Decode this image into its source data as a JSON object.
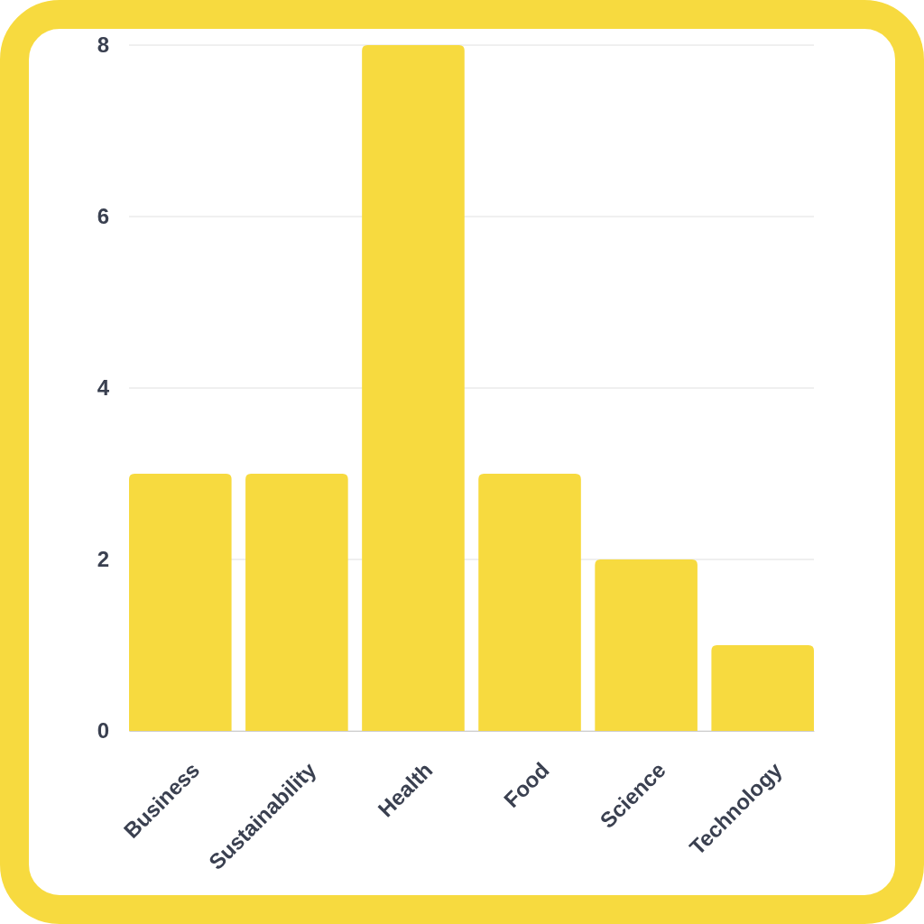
{
  "chart_data": {
    "type": "bar",
    "categories": [
      "Business",
      "Sustainability",
      "Health",
      "Food",
      "Science",
      "Technology"
    ],
    "values": [
      3,
      3,
      8,
      3,
      2,
      1
    ],
    "color": "#f7da3f",
    "ylim": [
      0,
      8
    ],
    "yticks": [
      0,
      2,
      4,
      6,
      8
    ],
    "grid": "y"
  }
}
